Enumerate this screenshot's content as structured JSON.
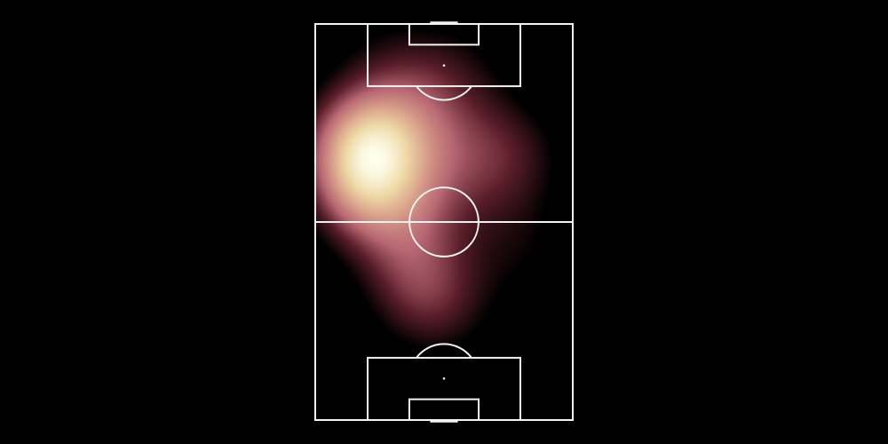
{
  "chart_data": {
    "type": "heatmap",
    "title": "",
    "xlabel": "",
    "ylabel": "",
    "pitch": {
      "orientation": "vertical",
      "length_m": 105,
      "width_m": 68,
      "line_color": "#f2f2f2",
      "background_color": "#000000"
    },
    "colormap": [
      "#000000",
      "#5a1e2a",
      "#b86873",
      "#d9a08a",
      "#eed9a6",
      "#ffffee"
    ],
    "density_points": [
      {
        "x": 11,
        "y": 75,
        "weight": 1.0
      },
      {
        "x": 16,
        "y": 69,
        "weight": 0.85
      },
      {
        "x": 24,
        "y": 78,
        "weight": 0.55
      },
      {
        "x": 10,
        "y": 60,
        "weight": 0.65
      },
      {
        "x": 19,
        "y": 56,
        "weight": 0.55
      },
      {
        "x": 29,
        "y": 45,
        "weight": 0.45
      },
      {
        "x": 24,
        "y": 36,
        "weight": 0.45
      },
      {
        "x": 36,
        "y": 64,
        "weight": 0.4
      },
      {
        "x": 49,
        "y": 68,
        "weight": 0.35
      },
      {
        "x": 56,
        "y": 72,
        "weight": 0.3
      },
      {
        "x": 55,
        "y": 50,
        "weight": 0.25
      },
      {
        "x": 56,
        "y": 40,
        "weight": 0.2
      },
      {
        "x": 28,
        "y": 92,
        "weight": 0.35
      },
      {
        "x": 40,
        "y": 97,
        "weight": 0.25
      },
      {
        "x": 15,
        "y": 99,
        "weight": 0.25
      },
      {
        "x": 41,
        "y": 80,
        "weight": 0.3
      },
      {
        "x": 37,
        "y": 29,
        "weight": 0.25
      },
      {
        "x": 31,
        "y": 27,
        "weight": 0.3
      }
    ]
  }
}
